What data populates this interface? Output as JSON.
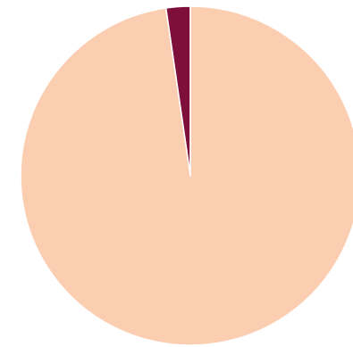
{
  "chart_data": {
    "type": "pie",
    "title": "",
    "legend": "none",
    "slices": [
      {
        "value": 2.3,
        "color": "#7d0f3a"
      },
      {
        "value": 97.7,
        "color": "#fcceb1"
      }
    ]
  }
}
